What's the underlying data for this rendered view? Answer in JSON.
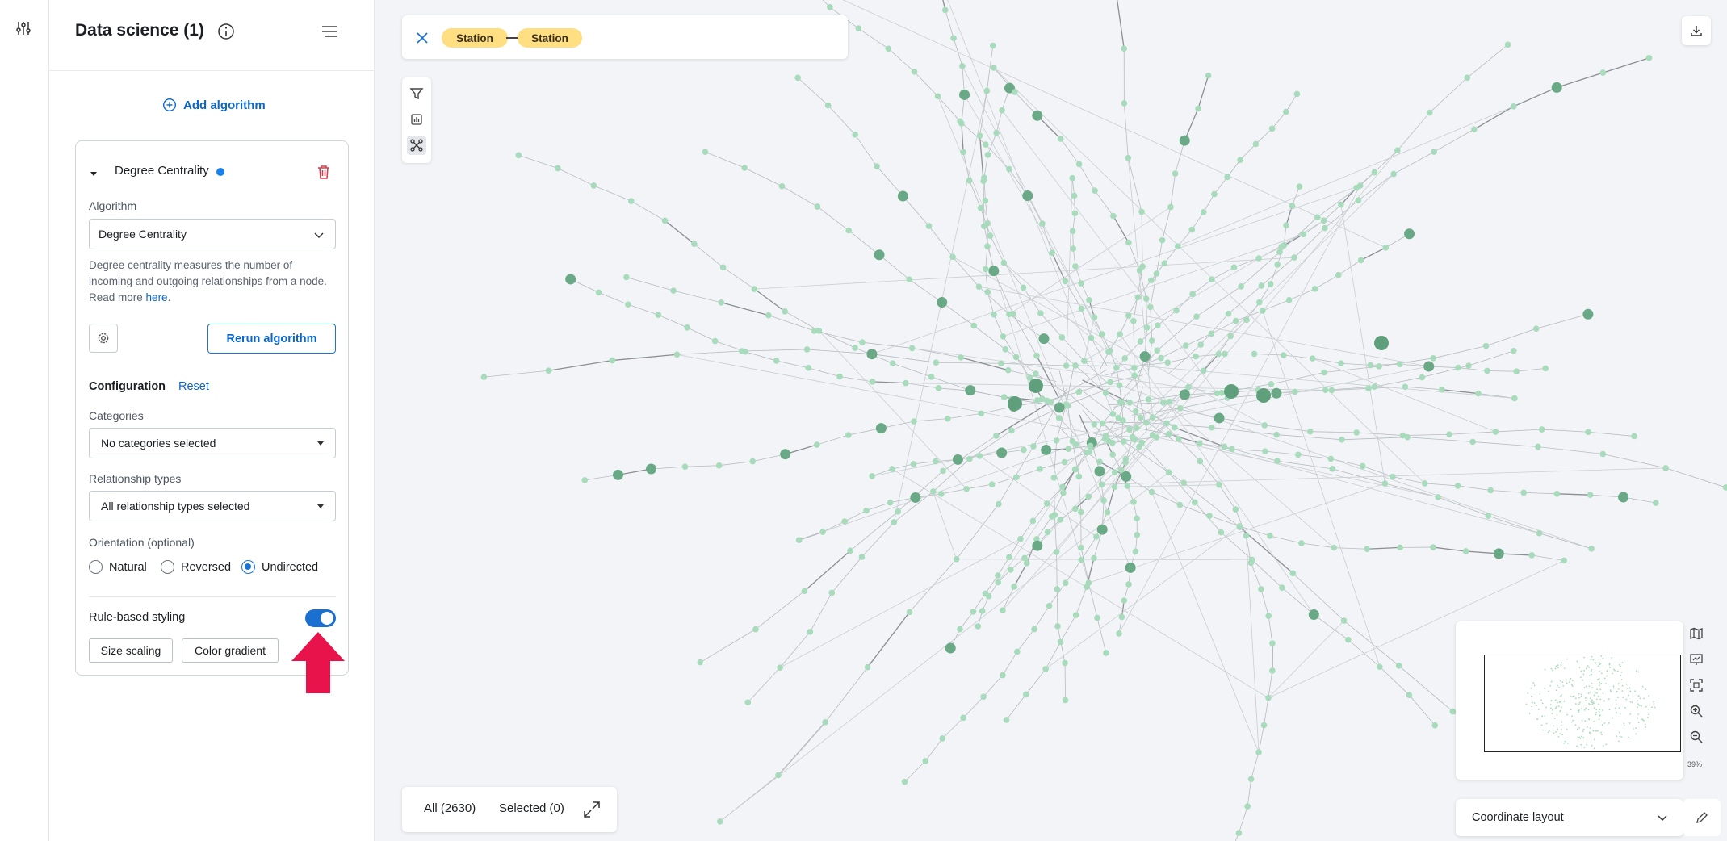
{
  "panel": {
    "title": "Data science (1)",
    "add_algorithm_label": "Add algorithm"
  },
  "algorithm_card": {
    "name": "Degree Centrality",
    "algorithm_label": "Algorithm",
    "algorithm_value": "Degree Centrality",
    "description": "Degree centrality measures the number of incoming and outgoing relationships from a node. Read more ",
    "description_link": "here",
    "description_end": ".",
    "rerun_label": "Rerun algorithm",
    "configuration_label": "Configuration",
    "reset_label": "Reset",
    "categories_label": "Categories",
    "categories_value": "No categories selected",
    "relationship_types_label": "Relationship types",
    "relationship_types_value": "All relationship types selected",
    "orientation_label": "Orientation (optional)",
    "orientation_options": [
      "Natural",
      "Reversed",
      "Undirected"
    ],
    "orientation_selected": "Undirected",
    "rule_based_styling_label": "Rule-based styling",
    "rule_based_styling_enabled": true,
    "size_scaling_label": "Size scaling",
    "color_gradient_label": "Color gradient"
  },
  "query_bar": {
    "pill_1": "Station",
    "pill_2": "Station"
  },
  "counts": {
    "all": "All (2630)",
    "selected": "Selected (0)"
  },
  "layout": {
    "selected": "Coordinate layout"
  },
  "minimap": {
    "zoom_level": "39%"
  },
  "colors": {
    "accent": "#1a74d6",
    "pill": "#ffdf81",
    "node": "#a8dbbb",
    "node_hub": "#6aa985",
    "arrow": "#e8134a"
  }
}
